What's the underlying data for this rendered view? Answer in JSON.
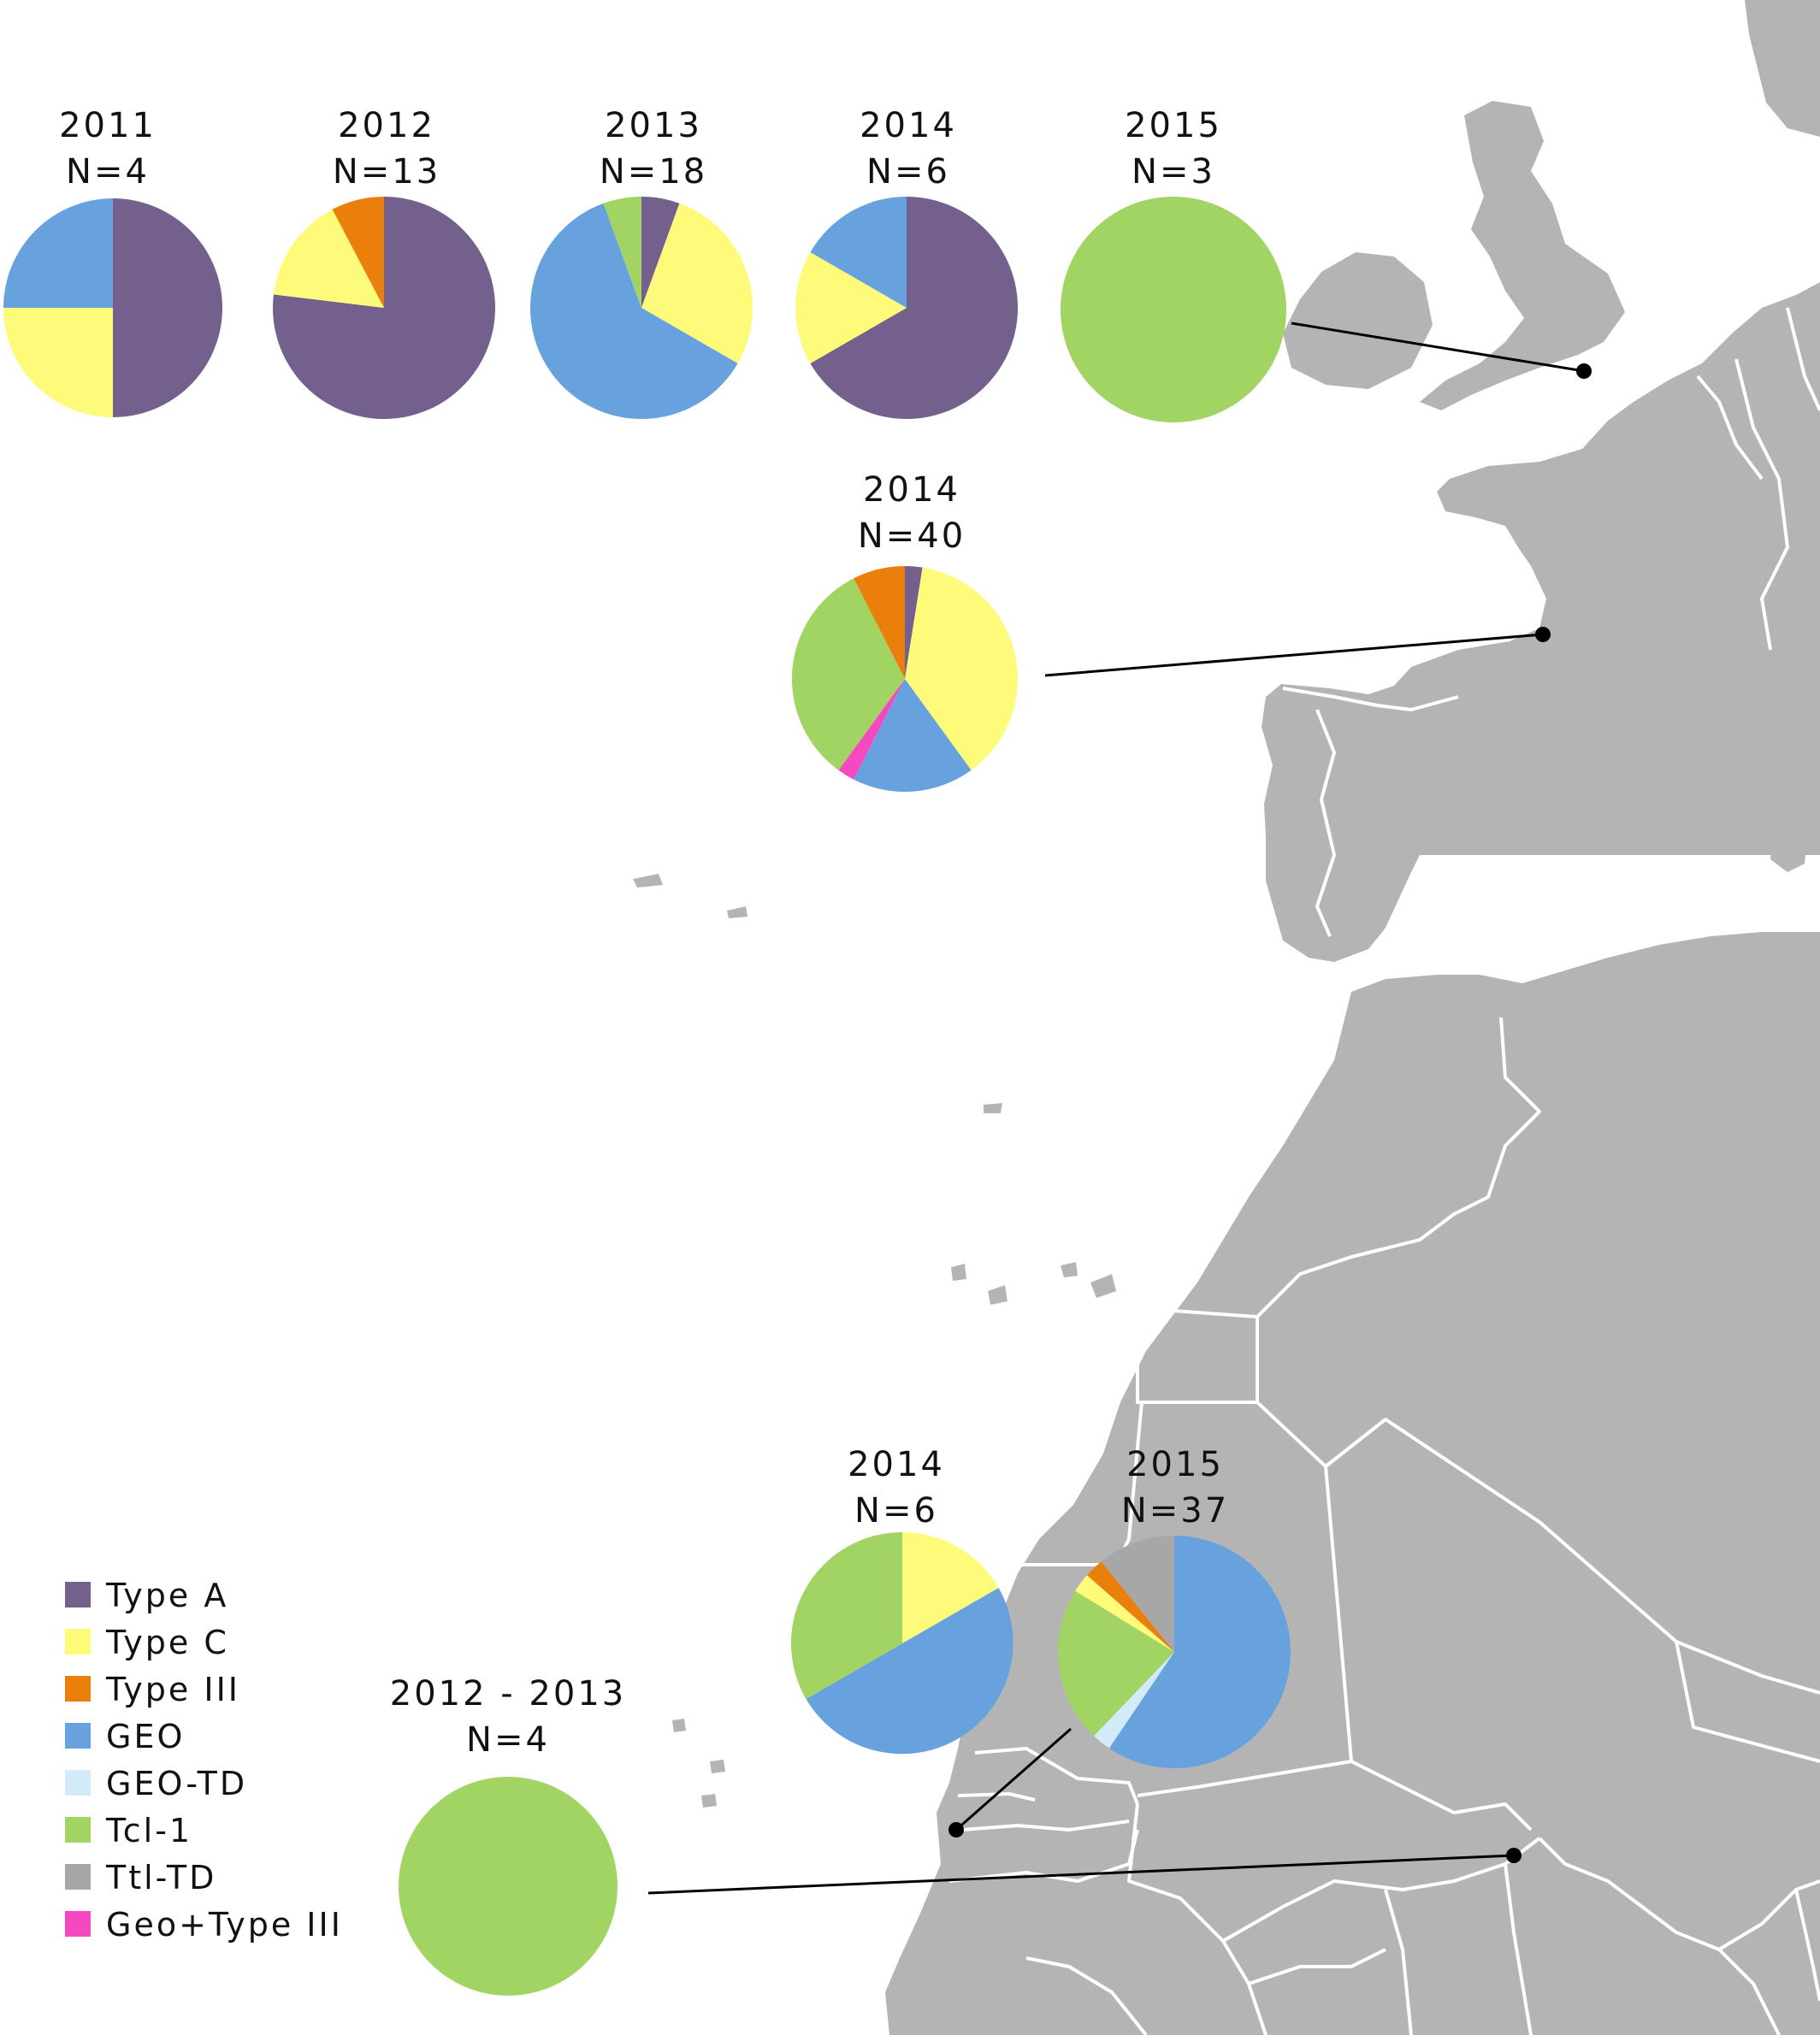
{
  "legend": {
    "items": [
      {
        "key": "type_a",
        "label": "Type A",
        "color": "#73608c"
      },
      {
        "key": "type_c",
        "label": "Type C",
        "color": "#fefb7a"
      },
      {
        "key": "type_iii",
        "label": "Type III",
        "color": "#ea7f0c"
      },
      {
        "key": "geo",
        "label": "GEO",
        "color": "#67a2de"
      },
      {
        "key": "geo_td",
        "label": "GEO-TD",
        "color": "#d3eaf8"
      },
      {
        "key": "tcl_1",
        "label": "Tcl-1",
        "color": "#a1d463"
      },
      {
        "key": "ttl_td",
        "label": "Ttl-TD",
        "color": "#a7a7a7"
      },
      {
        "key": "geo_type_iii",
        "label": "Geo+Type III",
        "color": "#f549bf"
      }
    ]
  },
  "map_colors": {
    "land": "#b4b4b4",
    "border": "#ffffff",
    "sea": "#ffffff",
    "connector": "#000000"
  },
  "chart_data": {
    "type": "pie",
    "pies": [
      {
        "id": "uk-2011",
        "year": "2011",
        "n": "N=4",
        "slices": [
          {
            "key": "type_a",
            "value": 2
          },
          {
            "key": "type_c",
            "value": 1
          },
          {
            "key": "geo",
            "value": 1
          }
        ]
      },
      {
        "id": "uk-2012",
        "year": "2012",
        "n": "N=13",
        "slices": [
          {
            "key": "type_a",
            "value": 10
          },
          {
            "key": "type_c",
            "value": 2
          },
          {
            "key": "type_iii",
            "value": 1
          }
        ]
      },
      {
        "id": "uk-2013",
        "year": "2013",
        "n": "N=18",
        "slices": [
          {
            "key": "type_a",
            "value": 1
          },
          {
            "key": "type_c",
            "value": 5
          },
          {
            "key": "geo",
            "value": 11
          },
          {
            "key": "tcl_1",
            "value": 1
          }
        ]
      },
      {
        "id": "uk-2014",
        "year": "2014",
        "n": "N=6",
        "slices": [
          {
            "key": "type_a",
            "value": 4
          },
          {
            "key": "type_c",
            "value": 1
          },
          {
            "key": "geo",
            "value": 1
          }
        ]
      },
      {
        "id": "uk-2015",
        "year": "2015",
        "n": "N=3",
        "slices": [
          {
            "key": "tcl_1",
            "value": 3
          }
        ]
      },
      {
        "id": "france-2014",
        "year": "2014",
        "n": "N=40",
        "slices": [
          {
            "key": "type_a",
            "value": 1
          },
          {
            "key": "type_c",
            "value": 15
          },
          {
            "key": "geo",
            "value": 7
          },
          {
            "key": "geo_type_iii",
            "value": 1
          },
          {
            "key": "tcl_1",
            "value": 13
          },
          {
            "key": "type_iii",
            "value": 3
          }
        ]
      },
      {
        "id": "senegal-2014",
        "year": "2014",
        "n": "N=6",
        "slices": [
          {
            "key": "type_c",
            "value": 1
          },
          {
            "key": "geo",
            "value": 3
          },
          {
            "key": "tcl_1",
            "value": 2
          }
        ]
      },
      {
        "id": "senegal-2015",
        "year": "2015",
        "n": "N=37",
        "slices": [
          {
            "key": "geo",
            "value": 22
          },
          {
            "key": "geo_td",
            "value": 1
          },
          {
            "key": "tcl_1",
            "value": 8
          },
          {
            "key": "type_c",
            "value": 1
          },
          {
            "key": "type_iii",
            "value": 1
          },
          {
            "key": "ttl_td",
            "value": 4
          }
        ]
      },
      {
        "id": "niger-2012-2013",
        "year": "2012 - 2013",
        "n": "N=4",
        "slices": [
          {
            "key": "tcl_1",
            "value": 4
          }
        ]
      }
    ]
  }
}
